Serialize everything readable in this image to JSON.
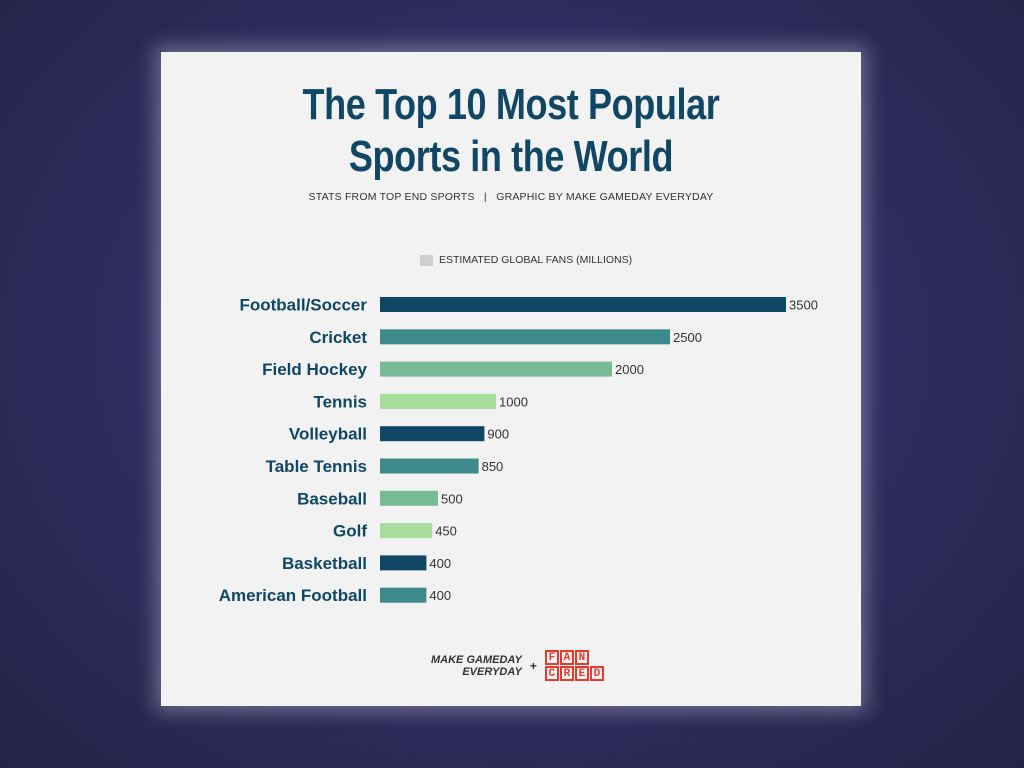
{
  "header": {
    "title_line1": "The Top 10 Most Popular",
    "title_line2": "Sports in the World",
    "subtitle": "STATS FROM TOP END SPORTS   |   GRAPHIC BY MAKE GAMEDAY EVERYDAY"
  },
  "legend": {
    "label": "ESTIMATED GLOBAL FANS (MILLIONS)",
    "color": "#cfcfcf"
  },
  "footer": {
    "brand1_line1": "MAKE GAMEDAY",
    "brand1_line2": "EVERYDAY",
    "plus": "+",
    "brand2_row1": [
      "F",
      "A",
      "N",
      ""
    ],
    "brand2_row2": [
      "C",
      "R",
      "E",
      "D"
    ]
  },
  "chart_data": {
    "type": "bar",
    "orientation": "horizontal",
    "categories": [
      "Football/Soccer",
      "Cricket",
      "Field Hockey",
      "Tennis",
      "Volleyball",
      "Table Tennis",
      "Baseball",
      "Golf",
      "Basketball",
      "American Football"
    ],
    "values": [
      3500,
      2500,
      2000,
      1000,
      900,
      850,
      500,
      450,
      400,
      400
    ],
    "colors": [
      "#0f4765",
      "#3d8a8a",
      "#76bb95",
      "#a6dc9c",
      "#0f4765",
      "#3d8a8a",
      "#76bb95",
      "#a6dc9c",
      "#0f4765",
      "#3d8a8a"
    ],
    "series": [
      {
        "name": "ESTIMATED GLOBAL FANS (MILLIONS)",
        "values": [
          3500,
          2500,
          2000,
          1000,
          900,
          850,
          500,
          450,
          400,
          400
        ]
      }
    ],
    "xlim": [
      0,
      3500
    ],
    "grid": false,
    "legend_position": "top"
  }
}
